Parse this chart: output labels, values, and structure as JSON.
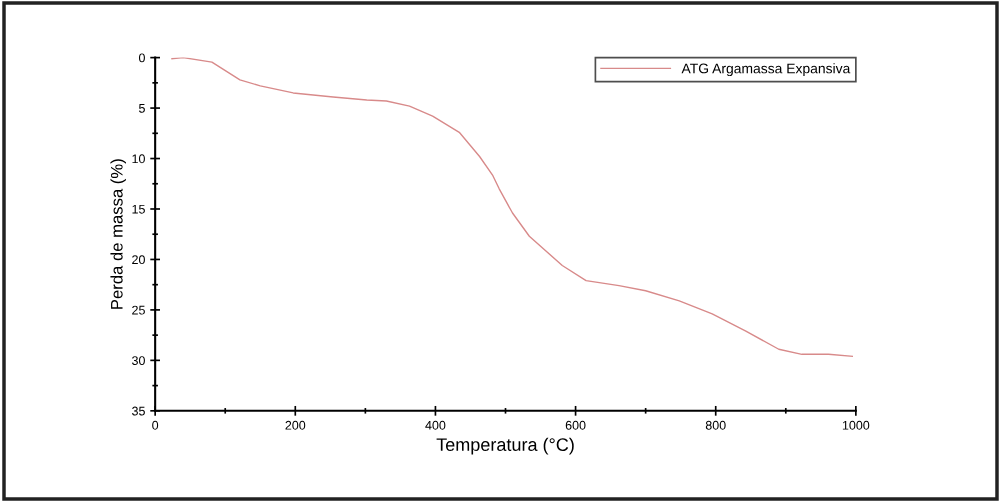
{
  "chart_data": {
    "type": "line",
    "xlabel": "Temperatura (°C)",
    "ylabel": "Perda de massa (%)",
    "xlim": [
      0,
      1000
    ],
    "xticks": [
      0,
      200,
      400,
      600,
      800,
      1000
    ],
    "ylim": [
      35,
      0
    ],
    "yticks": [
      0,
      5,
      10,
      15,
      20,
      25,
      30,
      35
    ],
    "legend": "top right",
    "grid": false,
    "series": [
      {
        "name": "ATG Argamassa Expansiva",
        "color": "#d88a8a",
        "x": [
          24,
          40,
          81,
          121,
          150,
          197,
          254,
          302,
          330,
          363,
          396,
          434,
          463,
          482,
          491,
          510,
          534,
          581,
          615,
          662,
          700,
          748,
          795,
          843,
          890,
          923,
          961,
          995
        ],
        "values": [
          0.1,
          0.0,
          0.45,
          2.2,
          2.8,
          3.5,
          3.9,
          4.2,
          4.3,
          4.8,
          5.8,
          7.4,
          9.8,
          11.7,
          13.0,
          15.4,
          17.7,
          20.6,
          22.1,
          22.6,
          23.1,
          24.1,
          25.4,
          27.1,
          28.9,
          29.4,
          29.4,
          29.6
        ]
      }
    ]
  }
}
